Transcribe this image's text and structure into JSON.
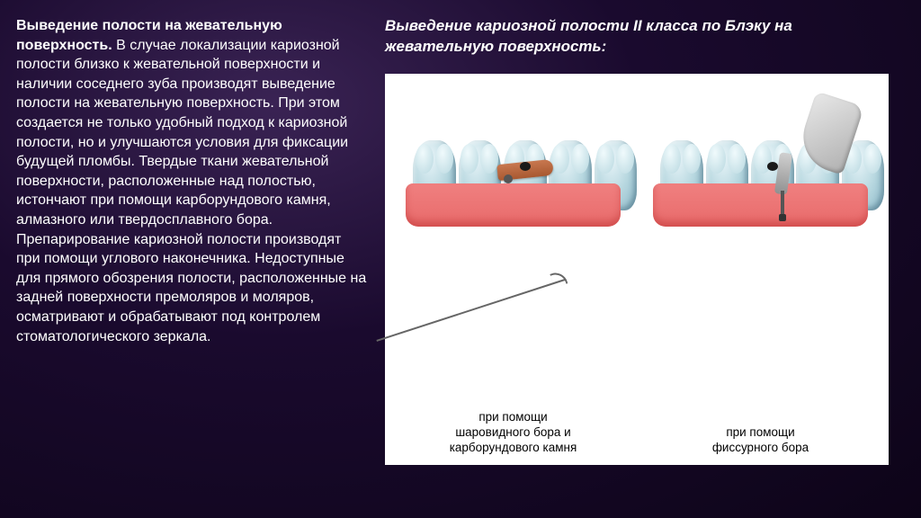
{
  "left": {
    "heading": "Выведение полости на жевательную поверхность.",
    "body": " В случае локализации кариозной полости близко к жевательной поверхности и наличии соседнего зуба производят выведение полости на жевательную поверхность. При этом создается не только удобный подход к кариозной полости, но и улучшаются условия для фиксации будущей пломбы. Твердые ткани жевательной поверхности, расположенные над полостью, истончают при помощи карборундового камня, алмазного или твердосплавного бора. Препарирование кариозной полости производят при помощи углового наконечника. Недоступные для прямого обозрения полости, расположенные на задней поверхности премоляров и моляров, осматривают и обрабатывают под контролем стоматологического зеркала."
  },
  "right": {
    "heading": "Выведение кариозной полости II класса по Блэку на жевательную поверхность:",
    "caption_left_l1": "при помощи",
    "caption_left_l2": "шаровидного бора и",
    "caption_left_l3": "карборундового камня",
    "caption_right_l1": "при помощи",
    "caption_right_l2": "фиссурного бора"
  },
  "figure": {
    "tooth_positions_pct": [
      8,
      27,
      46,
      65,
      84
    ],
    "cavity_tooth_index": 2,
    "colors": {
      "gum": "#e86a6a",
      "tooth_light": "#e8f4f8",
      "tooth_dark": "#8cb8c8",
      "bur_wood": "#b86838",
      "metal": "#b0b0b0"
    }
  }
}
